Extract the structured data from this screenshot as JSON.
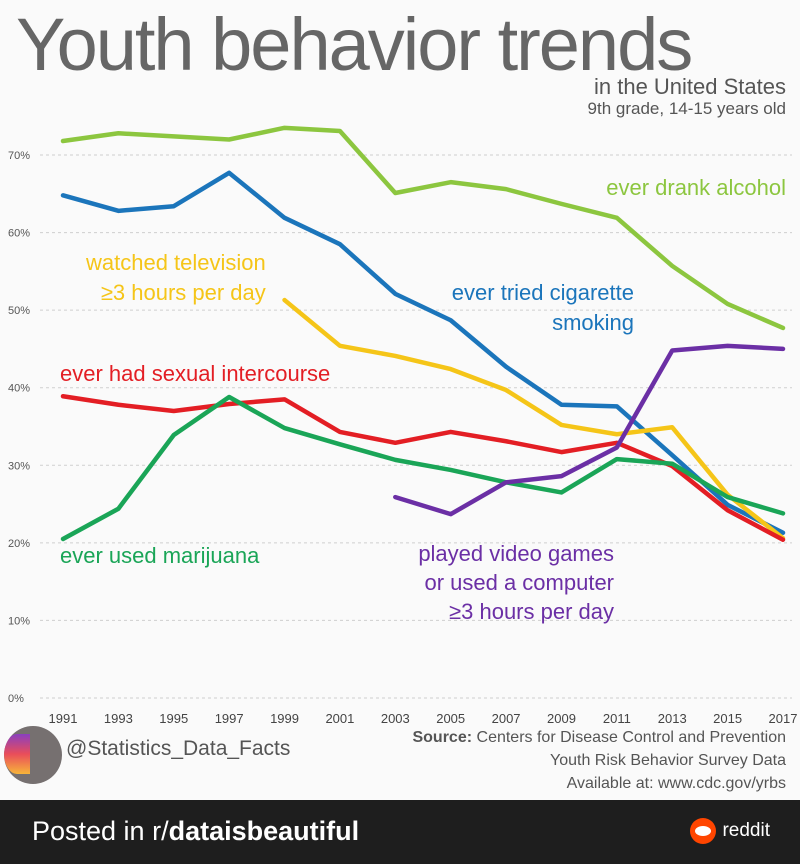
{
  "chart_data": {
    "type": "line",
    "title": "Youth behavior trends",
    "subtitle": [
      "in the United States",
      "9th grade, 14-15 years old"
    ],
    "x": [
      1991,
      1993,
      1995,
      1997,
      1999,
      2001,
      2003,
      2005,
      2007,
      2009,
      2011,
      2013,
      2015,
      2017
    ],
    "x_tick_labels": [
      "1991",
      "1993",
      "1995",
      "1997",
      "1999",
      "2001",
      "2003",
      "2005",
      "2007",
      "2009",
      "2011",
      "2013",
      "2015",
      "2017"
    ],
    "y_tick_labels": [
      "0%",
      "10%",
      "20%",
      "30%",
      "40%",
      "50%",
      "60%",
      "70%"
    ],
    "y_ticks": [
      0,
      10,
      20,
      30,
      40,
      50,
      60,
      70
    ],
    "ylim": [
      0,
      70
    ],
    "grid": true,
    "series": [
      {
        "name": "ever drank alcohol",
        "label_lines": [
          "ever drank alcohol"
        ],
        "color": "#8cc63f",
        "values": [
          71.8,
          72.8,
          72.4,
          72.0,
          73.5,
          73.1,
          65.1,
          66.5,
          65.6,
          63.7,
          61.9,
          55.7,
          50.8,
          47.7
        ]
      },
      {
        "name": "ever tried cigarette smoking",
        "label_lines": [
          "ever tried cigarette",
          "smoking"
        ],
        "color": "#1b75bb",
        "values": [
          64.8,
          62.8,
          63.4,
          67.7,
          61.9,
          58.5,
          52.1,
          48.7,
          42.7,
          37.8,
          37.6,
          31.3,
          24.9,
          21.3
        ]
      },
      {
        "name": "watched television ≥3 hours per day",
        "label_lines": [
          "watched television",
          "≥3 hours per day"
        ],
        "color": "#f5c518",
        "values": [
          null,
          null,
          null,
          null,
          51.3,
          45.4,
          44.1,
          42.4,
          39.7,
          35.2,
          34.0,
          34.9,
          26.2,
          20.6
        ]
      },
      {
        "name": "ever had sexual intercourse",
        "label_lines": [
          "ever had sexual intercourse"
        ],
        "color": "#e31e24",
        "values": [
          38.9,
          37.8,
          37.0,
          37.9,
          38.5,
          34.3,
          32.9,
          34.3,
          33.1,
          31.7,
          32.9,
          29.9,
          24.2,
          20.4
        ]
      },
      {
        "name": "ever used marijuana",
        "label_lines": [
          "ever used marijuana"
        ],
        "color": "#1aa557",
        "values": [
          20.5,
          24.4,
          33.9,
          38.8,
          34.8,
          32.7,
          30.7,
          29.4,
          27.8,
          26.5,
          30.8,
          30.2,
          25.9,
          23.8
        ]
      },
      {
        "name": "played video games or used a computer ≥3 hours per day",
        "label_lines": [
          "played video games",
          "or used a computer",
          "≥3 hours per day"
        ],
        "color": "#6b2fa5",
        "values": [
          null,
          null,
          null,
          null,
          null,
          null,
          25.9,
          23.7,
          27.8,
          28.6,
          32.3,
          44.8,
          45.4,
          45.0
        ]
      }
    ]
  },
  "credits": {
    "handle": "@Statistics_Data_Facts",
    "source_label": "Source:",
    "source_text": " Centers for Disease Control and Prevention",
    "source_line2": "Youth Risk Behavior Survey Data",
    "source_line3": "Available at: www.cdc.gov/yrbs"
  },
  "footer": {
    "posted_prefix": "Posted in r/",
    "subreddit": "dataisbeautiful",
    "brand": "reddit"
  }
}
